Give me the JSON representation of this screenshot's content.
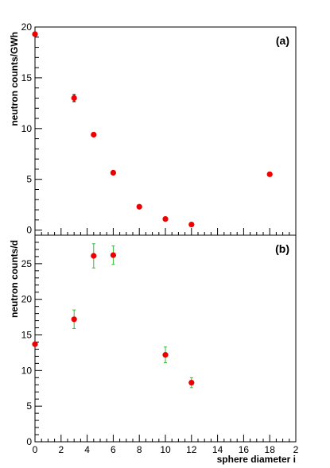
{
  "chart_data": [
    {
      "panel_label": "(a)",
      "type": "scatter",
      "ylabel": "neutron counts/GWh",
      "xlim": [
        0,
        20
      ],
      "ylim": [
        -0.5,
        20
      ],
      "yticks": [
        0,
        5,
        10,
        15,
        20
      ],
      "marker_color": "#ee0000",
      "errorbar_color": "#000000",
      "points": [
        {
          "x": 0,
          "y": 19.3,
          "err": 0
        },
        {
          "x": 3,
          "y": 13.0,
          "err": 0.35
        },
        {
          "x": 4.5,
          "y": 9.4,
          "err": 0
        },
        {
          "x": 6,
          "y": 5.65,
          "err": 0
        },
        {
          "x": 8,
          "y": 2.3,
          "err": 0
        },
        {
          "x": 10,
          "y": 1.1,
          "err": 0
        },
        {
          "x": 12,
          "y": 0.55,
          "err": 0
        },
        {
          "x": 18,
          "y": 5.5,
          "err": 0
        }
      ]
    },
    {
      "panel_label": "(b)",
      "type": "scatter",
      "ylabel": "neutron counts/d",
      "xlabel": "sphere diameter i",
      "xlim": [
        0,
        20
      ],
      "ylim": [
        0,
        29
      ],
      "yticks": [
        0,
        5,
        10,
        15,
        20,
        25
      ],
      "xticks": [
        "0",
        "2",
        "4",
        "6",
        "8",
        "10",
        "12",
        "14",
        "16",
        "18",
        "2"
      ],
      "marker_color": "#ee0000",
      "errorbar_color": "#33bb33",
      "points": [
        {
          "x": 0,
          "y": 13.7,
          "err": 0
        },
        {
          "x": 3,
          "y": 17.2,
          "err": 1.3
        },
        {
          "x": 4.5,
          "y": 26.1,
          "err": 1.7
        },
        {
          "x": 6,
          "y": 26.2,
          "err": 1.3
        },
        {
          "x": 10,
          "y": 12.2,
          "err": 1.1
        },
        {
          "x": 12,
          "y": 8.3,
          "err": 0.7
        }
      ]
    }
  ]
}
